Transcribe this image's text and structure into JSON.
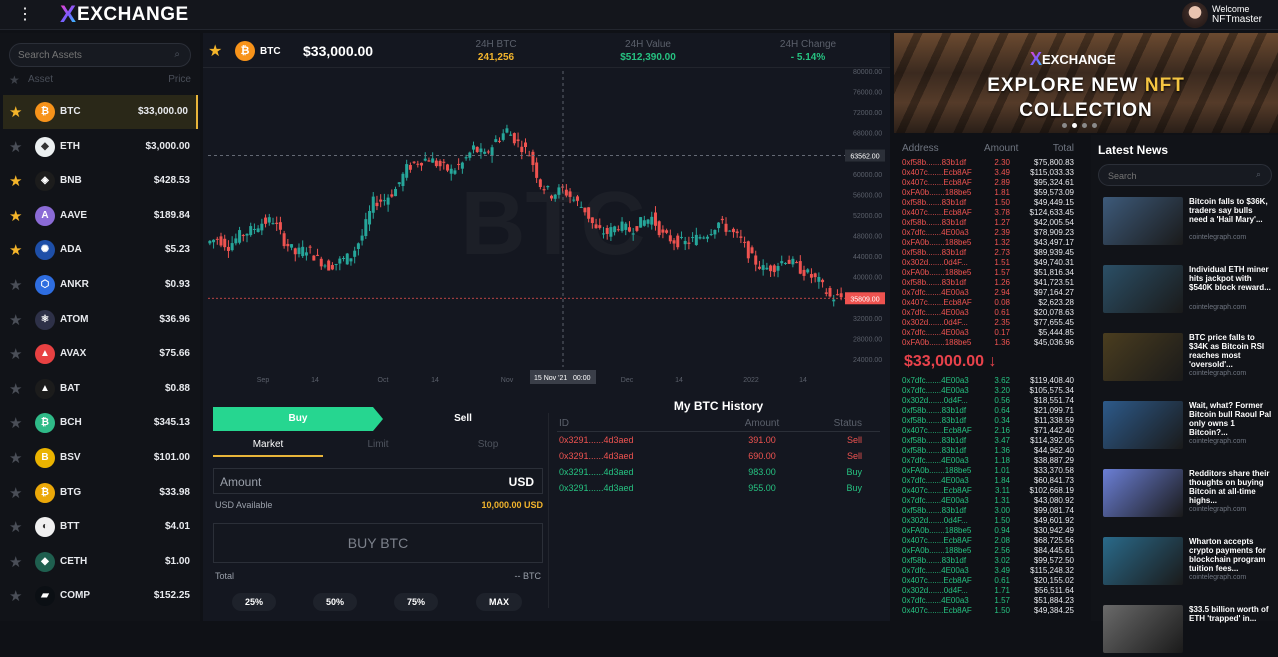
{
  "header": {
    "logo_mark": "X",
    "logo_text": "EXCHANGE",
    "welcome": "Welcome",
    "username": "NFTmaster"
  },
  "sidebar": {
    "search_placeholder": "Search Assets",
    "col_asset": "Asset",
    "col_price": "Price",
    "assets": [
      {
        "symbol": "BTC",
        "price": "$33,000.00",
        "fav": true,
        "color": "#f7931a",
        "glyph": "₿"
      },
      {
        "symbol": "ETH",
        "price": "$3,000.00",
        "fav": false,
        "color": "#ecf0f1",
        "glyph": "◆"
      },
      {
        "symbol": "BNB",
        "price": "$428.53",
        "fav": true,
        "color": "#1c1c1c",
        "glyph": "◈"
      },
      {
        "symbol": "AAVE",
        "price": "$189.84",
        "fav": true,
        "color": "#8b6bd6",
        "glyph": "A"
      },
      {
        "symbol": "ADA",
        "price": "$5.23",
        "fav": true,
        "color": "#1e4fa8",
        "glyph": "✺"
      },
      {
        "symbol": "ANKR",
        "price": "$0.93",
        "fav": false,
        "color": "#2e6de0",
        "glyph": "⬡"
      },
      {
        "symbol": "ATOM",
        "price": "$36.96",
        "fav": false,
        "color": "#2e3148",
        "glyph": "⚛"
      },
      {
        "symbol": "AVAX",
        "price": "$75.66",
        "fav": false,
        "color": "#e84142",
        "glyph": "▲"
      },
      {
        "symbol": "BAT",
        "price": "$0.88",
        "fav": false,
        "color": "#1c1c1c",
        "glyph": "▲"
      },
      {
        "symbol": "BCH",
        "price": "$345.13",
        "fav": false,
        "color": "#2fba88",
        "glyph": "₿"
      },
      {
        "symbol": "BSV",
        "price": "$101.00",
        "fav": false,
        "color": "#eab300",
        "glyph": "B"
      },
      {
        "symbol": "BTG",
        "price": "$33.98",
        "fav": false,
        "color": "#eba809",
        "glyph": "₿"
      },
      {
        "symbol": "BTT",
        "price": "$4.01",
        "fav": false,
        "color": "#f0f0f0",
        "glyph": "◐"
      },
      {
        "symbol": "CETH",
        "price": "$1.00",
        "fav": false,
        "color": "#1f5f4f",
        "glyph": "◆"
      },
      {
        "symbol": "COMP",
        "price": "$152.25",
        "fav": false,
        "color": "#0b0f14",
        "glyph": "▰"
      }
    ]
  },
  "ticker": {
    "symbol": "BTC",
    "price": "$33,000.00",
    "stat1_label": "24H BTC",
    "stat1_value": "241,256",
    "stat2_label": "24H Value",
    "stat2_value": "$512,390.00",
    "stat3_label": "24H Change",
    "stat3_value": "- 5.14%"
  },
  "chart_data": {
    "type": "candlestick",
    "watermark": "BTC",
    "ylim": [
      24000,
      80000
    ],
    "y_ticks": [
      "80000.00",
      "76000.00",
      "72000.00",
      "68000.00",
      "64000.00",
      "60000.00",
      "56000.00",
      "52000.00",
      "48000.00",
      "44000.00",
      "40000.00",
      "36000.00",
      "32000.00",
      "28000.00",
      "24000.00"
    ],
    "x_ticks": [
      "Sep",
      "14",
      "Oct",
      "14",
      "Nov",
      "Dec",
      "14",
      "2022",
      "14"
    ],
    "crosshair_price": "63562.00",
    "current_price": "35809.00",
    "crosshair_date": "15 Nov '21",
    "crosshair_time": "00:00",
    "colors": {
      "up": "#26a69a",
      "down": "#ef5350"
    }
  },
  "trade": {
    "buy_tab": "Buy",
    "sell_tab": "Sell",
    "order_types": [
      "Market",
      "Limit",
      "Stop"
    ],
    "amount_label": "Amount",
    "amount_currency": "USD",
    "available_label": "USD Available",
    "available_value": "10,000.00 USD",
    "submit": "BUY BTC",
    "total_label": "Total",
    "total_value": "-- BTC",
    "percents": [
      "25%",
      "50%",
      "75%",
      "MAX"
    ]
  },
  "history": {
    "title": "My BTC History",
    "cols": [
      "ID",
      "Amount",
      "Status"
    ],
    "rows": [
      {
        "id": "0x3291......4d3aed",
        "amount": "391.00",
        "status": "Sell"
      },
      {
        "id": "0x3291......4d3aed",
        "amount": "690.00",
        "status": "Sell"
      },
      {
        "id": "0x3291......4d3aed",
        "amount": "983.00",
        "status": "Buy"
      },
      {
        "id": "0x3291......4d3aed",
        "amount": "955.00",
        "status": "Buy"
      }
    ]
  },
  "banner": {
    "logo_mark": "X",
    "logo_text": "EXCHANGE",
    "line1_a": "EXPLORE NEW ",
    "line1_b": "NFT",
    "line2": "COLLECTION"
  },
  "orderbook": {
    "cols": [
      "Address",
      "Amount",
      "Total"
    ],
    "mid_price": "$33,000.00",
    "asks": [
      [
        "0xf58b.......83b1df",
        "2.30",
        "$75,800.83"
      ],
      [
        "0x407c.......Ecb8AF",
        "3.49",
        "$115,033.33"
      ],
      [
        "0x407c.......Ecb8AF",
        "2.89",
        "$95,324.61"
      ],
      [
        "0xFA0b.......188be5",
        "1.81",
        "$59,573.09"
      ],
      [
        "0xf58b.......83b1df",
        "1.50",
        "$49,449.15"
      ],
      [
        "0x407c.......Ecb8AF",
        "3.78",
        "$124,633.45"
      ],
      [
        "0xf58b.......83b1df",
        "1.27",
        "$42,005.54"
      ],
      [
        "0x7dfc.......4E00a3",
        "2.39",
        "$78,909.23"
      ],
      [
        "0xFA0b.......188be5",
        "1.32",
        "$43,497.17"
      ],
      [
        "0xf58b.......83b1df",
        "2.73",
        "$89,939.45"
      ],
      [
        "0x302d.......0d4F...",
        "1.51",
        "$49,740.31"
      ],
      [
        "0xFA0b.......188be5",
        "1.57",
        "$51,816.34"
      ],
      [
        "0xf58b.......83b1df",
        "1.26",
        "$41,723.51"
      ],
      [
        "0x7dfc.......4E00a3",
        "2.94",
        "$97,164.27"
      ],
      [
        "0x407c.......Ecb8AF",
        "0.08",
        "$2,623.28"
      ],
      [
        "0x7dfc.......4E00a3",
        "0.61",
        "$20,078.63"
      ],
      [
        "0x302d.......0d4F...",
        "2.35",
        "$77,655.45"
      ],
      [
        "0x7dfc.......4E00a3",
        "0.17",
        "$5,444.85"
      ],
      [
        "0xFA0b.......188be5",
        "1.36",
        "$45,036.96"
      ]
    ],
    "bids": [
      [
        "0x7dfc.......4E00a3",
        "3.62",
        "$119,408.40"
      ],
      [
        "0x7dfc.......4E00a3",
        "3.20",
        "$105,575.34"
      ],
      [
        "0x302d.......0d4F...",
        "0.56",
        "$18,551.74"
      ],
      [
        "0xf58b.......83b1df",
        "0.64",
        "$21,099.71"
      ],
      [
        "0xf58b.......83b1df",
        "0.34",
        "$11,338.59"
      ],
      [
        "0x407c.......Ecb8AF",
        "2.16",
        "$71,442.40"
      ],
      [
        "0xf58b.......83b1df",
        "3.47",
        "$114,392.05"
      ],
      [
        "0xf58b.......83b1df",
        "1.36",
        "$44,962.40"
      ],
      [
        "0x7dfc.......4E00a3",
        "1.18",
        "$38,887.29"
      ],
      [
        "0xFA0b.......188be5",
        "1.01",
        "$33,370.58"
      ],
      [
        "0x7dfc.......4E00a3",
        "1.84",
        "$60,841.73"
      ],
      [
        "0x407c.......Ecb8AF",
        "3.11",
        "$102,668.19"
      ],
      [
        "0x7dfc.......4E00a3",
        "1.31",
        "$43,080.92"
      ],
      [
        "0xf58b.......83b1df",
        "3.00",
        "$99,081.74"
      ],
      [
        "0x302d.......0d4F...",
        "1.50",
        "$49,601.92"
      ],
      [
        "0xFA0b.......188be5",
        "0.94",
        "$30,942.49"
      ],
      [
        "0x407c.......Ecb8AF",
        "2.08",
        "$68,725.56"
      ],
      [
        "0xFA0b.......188be5",
        "2.56",
        "$84,445.61"
      ],
      [
        "0xf58b.......83b1df",
        "3.02",
        "$99,572.50"
      ],
      [
        "0x7dfc.......4E00a3",
        "3.49",
        "$115,248.32"
      ],
      [
        "0x407c.......Ecb8AF",
        "0.61",
        "$20,155.02"
      ],
      [
        "0x302d.......0d4F...",
        "1.71",
        "$56,511.64"
      ],
      [
        "0x7dfc.......4E00a3",
        "1.57",
        "$51,884.23"
      ],
      [
        "0x407c.......Ecb8AF",
        "1.50",
        "$49,384.25"
      ]
    ]
  },
  "news": {
    "title": "Latest News",
    "search_placeholder": "Search",
    "items": [
      {
        "headline": "Bitcoin falls to $36K, traders say bulls need a 'Hail Mary'...",
        "source": "cointelegraph.com",
        "thumb": "#3d5a7a"
      },
      {
        "headline": "Individual ETH miner hits jackpot with $540K block reward...",
        "source": "cointelegraph.com",
        "thumb": "#2b4f66"
      },
      {
        "headline": "BTC price falls to $34K as Bitcoin RSI reaches most 'oversold'...",
        "source": "cointelegraph.com",
        "thumb": "#4a3d1f"
      },
      {
        "headline": "Wait, what? Former Bitcoin bull Raoul Pal only owns 1 Bitcoin?...",
        "source": "cointelegraph.com",
        "thumb": "#2d5a8a"
      },
      {
        "headline": "Redditors share their thoughts on buying Bitcoin at all-time highs...",
        "source": "cointelegraph.com",
        "thumb": "#6b7fd6"
      },
      {
        "headline": "Wharton accepts crypto payments for blockchain program tuition fees...",
        "source": "cointelegraph.com",
        "thumb": "#2a6a8a"
      },
      {
        "headline": "$33.5 billion worth of ETH 'trapped' in...",
        "source": "",
        "thumb": "#6a6a6a"
      }
    ]
  }
}
